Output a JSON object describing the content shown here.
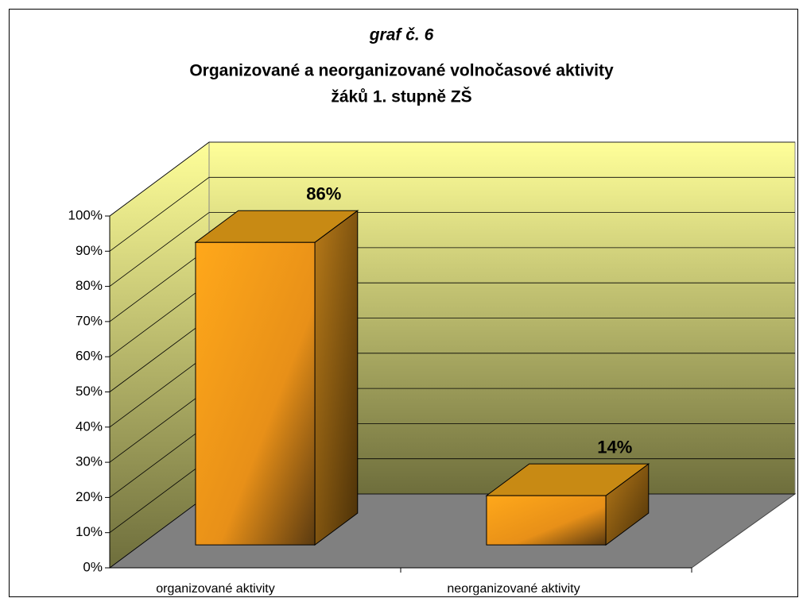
{
  "chart_data": {
    "type": "bar3d",
    "title": [
      "graf č. 6",
      "Organizované a neorganizované volnočasové aktivity",
      "žáků 1. stupně ZŠ"
    ],
    "categories": [
      "organizované aktivity",
      "neorganizované aktivity"
    ],
    "values": [
      86,
      14
    ],
    "value_labels": [
      "86%",
      "14%"
    ],
    "color": "#f5a020",
    "ylim": [
      0,
      100
    ],
    "yticks": [
      {
        "value": 0,
        "label": "0%"
      },
      {
        "value": 10,
        "label": "10%"
      },
      {
        "value": 20,
        "label": "20%"
      },
      {
        "value": 30,
        "label": "30%"
      },
      {
        "value": 40,
        "label": "40%"
      },
      {
        "value": 50,
        "label": "50%"
      },
      {
        "value": 60,
        "label": "60%"
      },
      {
        "value": 70,
        "label": "70%"
      },
      {
        "value": 80,
        "label": "80%"
      },
      {
        "value": 90,
        "label": "90%"
      },
      {
        "value": 100,
        "label": "100%"
      }
    ],
    "grid": true
  }
}
